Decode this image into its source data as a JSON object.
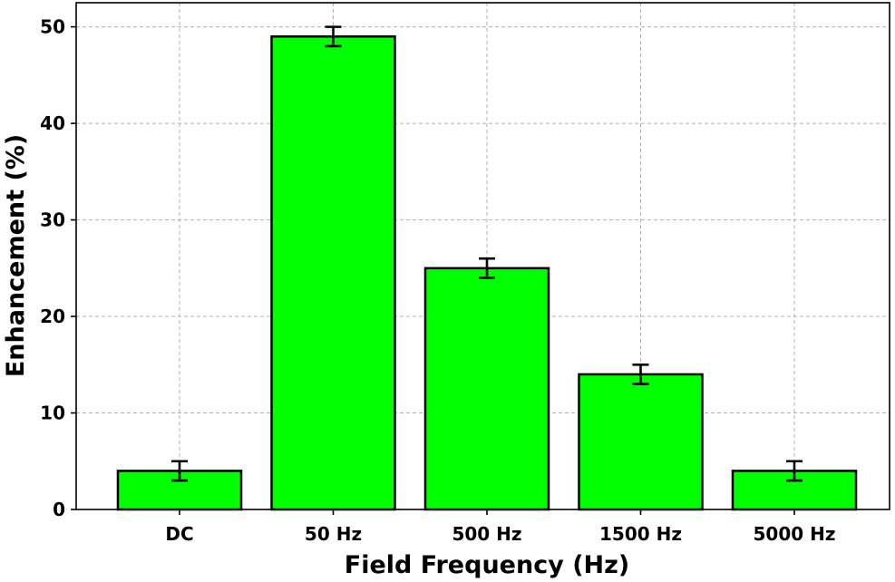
{
  "chart_data": {
    "type": "bar",
    "categories": [
      "DC",
      "50 Hz",
      "500 Hz",
      "1500 Hz",
      "5000 Hz"
    ],
    "values": [
      4,
      49,
      25,
      14,
      4
    ],
    "errors": [
      1,
      1,
      1,
      1,
      1
    ],
    "xlabel": "Field Frequency (Hz)",
    "ylabel": "Enhancement (%)",
    "ylim": [
      0,
      52.5
    ],
    "yticks": [
      0,
      10,
      20,
      30,
      40,
      50
    ],
    "grid": true,
    "legend": "none",
    "colors": {
      "bar_fill": "#00ff00",
      "bar_edge": "#000000",
      "grid": "#b0b0b0"
    }
  }
}
